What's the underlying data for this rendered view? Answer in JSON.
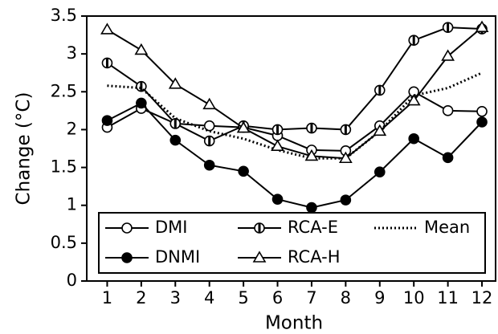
{
  "chart_data": {
    "type": "line",
    "x_label": "Month",
    "y_label": "Change (°C)",
    "x": [
      1,
      2,
      3,
      4,
      5,
      6,
      7,
      8,
      9,
      10,
      11,
      12
    ],
    "xlim": [
      0.4,
      12.4
    ],
    "xticks": [
      1,
      2,
      3,
      4,
      5,
      6,
      7,
      8,
      9,
      10,
      11,
      12
    ],
    "ylim": [
      0,
      3.5
    ],
    "yticks": [
      0,
      0.5,
      1,
      1.5,
      2,
      2.5,
      3,
      3.5
    ],
    "legend_position": "lower",
    "legend_columns": 3,
    "series": [
      {
        "name": "DMI",
        "color": "#000000",
        "marker": "circle-open",
        "line_style": "solid",
        "values": [
          2.03,
          2.28,
          2.08,
          2.05,
          2.03,
          1.92,
          1.73,
          1.72,
          2.05,
          2.5,
          2.25,
          2.24
        ]
      },
      {
        "name": "RCA-E",
        "color": "#000000",
        "marker": "circle-barred",
        "line_style": "solid",
        "values": [
          2.88,
          2.57,
          2.08,
          1.85,
          2.05,
          2.0,
          2.02,
          2.0,
          2.52,
          3.18,
          3.35,
          3.33
        ]
      },
      {
        "name": "Mean",
        "color": "#000000",
        "marker": "none",
        "line_style": "dotted",
        "values": [
          2.58,
          2.55,
          2.15,
          1.98,
          1.88,
          1.73,
          1.62,
          1.62,
          1.98,
          2.45,
          2.55,
          2.75
        ]
      },
      {
        "name": "DNMI",
        "color": "#000000",
        "marker": "circle-filled",
        "line_style": "solid",
        "values": [
          2.12,
          2.35,
          1.86,
          1.53,
          1.45,
          1.08,
          0.97,
          1.07,
          1.44,
          1.88,
          1.63,
          2.1
        ]
      },
      {
        "name": "RCA-H",
        "color": "#000000",
        "marker": "triangle",
        "line_style": "solid",
        "values": [
          3.32,
          3.05,
          2.6,
          2.33,
          2.02,
          1.78,
          1.65,
          1.62,
          1.98,
          2.38,
          2.97,
          3.35
        ]
      }
    ]
  }
}
